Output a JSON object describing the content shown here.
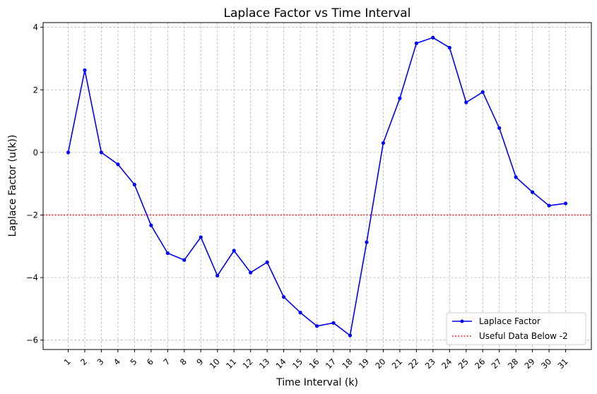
{
  "chart_data": {
    "type": "line",
    "title": "Laplace Factor vs Time Interval",
    "xlabel": "Time Interval (k)",
    "ylabel": "Laplace Factor (u(k))",
    "categories": [
      "1",
      "2",
      "3",
      "4",
      "5",
      "6",
      "7",
      "8",
      "9",
      "10",
      "11",
      "12",
      "13",
      "14",
      "15",
      "16",
      "17",
      "18",
      "19",
      "20",
      "21",
      "22",
      "23",
      "24",
      "25",
      "26",
      "27",
      "28",
      "29",
      "30",
      "31"
    ],
    "series": [
      {
        "name": "Laplace Factor",
        "color": "#0000ff",
        "marker": "circle",
        "values": [
          0.0,
          2.63,
          0.0,
          -0.38,
          -1.03,
          -2.33,
          -3.22,
          -3.44,
          -2.71,
          -3.94,
          -3.14,
          -3.84,
          -3.51,
          -4.62,
          -5.12,
          -5.55,
          -5.45,
          -5.85,
          -2.87,
          0.3,
          1.73,
          3.49,
          3.67,
          3.35,
          1.6,
          1.93,
          0.78,
          -0.79,
          -1.27,
          -1.7,
          -1.63
        ]
      }
    ],
    "reference_line": {
      "name": "Useful Data Below -2",
      "value": -2,
      "color": "#ff0000",
      "style": "dotted"
    },
    "yticks": [
      4,
      2,
      0,
      -2,
      -4,
      -6
    ],
    "ytick_labels": [
      "4",
      "2",
      "0",
      "−2",
      "−4",
      "−6"
    ],
    "ylim": [
      -6.3,
      4.15
    ],
    "grid": true,
    "legend_position": "lower-right"
  }
}
